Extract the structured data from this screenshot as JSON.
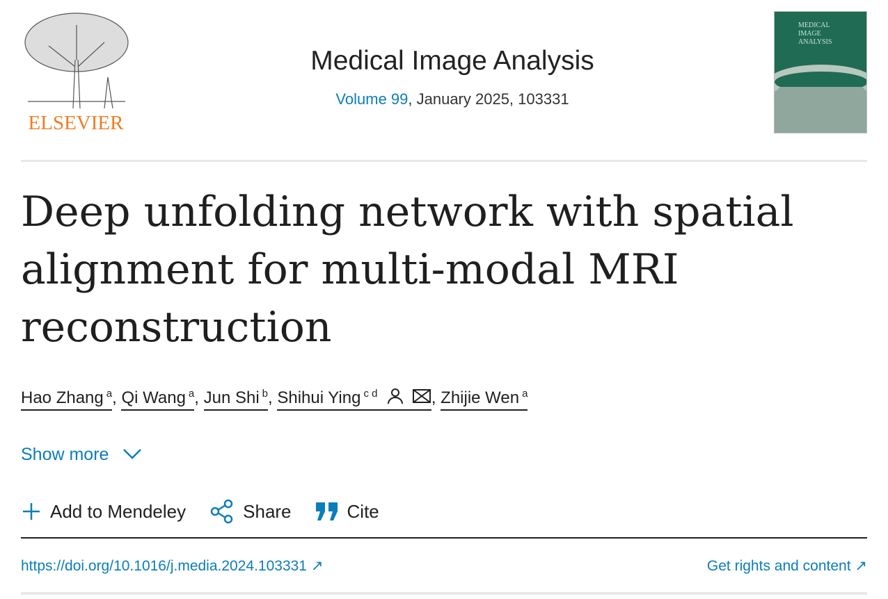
{
  "publisher": {
    "logo_text": "ELSEVIER"
  },
  "journal": {
    "title": "Medical Image Analysis",
    "volume_link": "Volume 99",
    "issue_info": ", January 2025, 103331",
    "cover_text": "MEDICAL IMAGE ANALYSIS"
  },
  "article": {
    "title": "Deep unfolding network with spatial alignment for multi-modal MRI reconstruction"
  },
  "authors": [
    {
      "name": "Hao Zhang",
      "aff": "a"
    },
    {
      "name": "Qi Wang",
      "aff": "a"
    },
    {
      "name": "Jun Shi",
      "aff": "b"
    },
    {
      "name": "Shihui Ying",
      "aff": "c d"
    },
    {
      "name": "Zhijie Wen",
      "aff": "a"
    }
  ],
  "show_more": "Show more",
  "actions": {
    "mendeley": "Add to Mendeley",
    "share": "Share",
    "cite": "Cite"
  },
  "doi": "https://doi.org/10.1016/j.media.2024.103331",
  "rights": "Get rights and content",
  "colors": {
    "link": "#0c7dbb",
    "elsevier_orange": "#f07d22"
  }
}
